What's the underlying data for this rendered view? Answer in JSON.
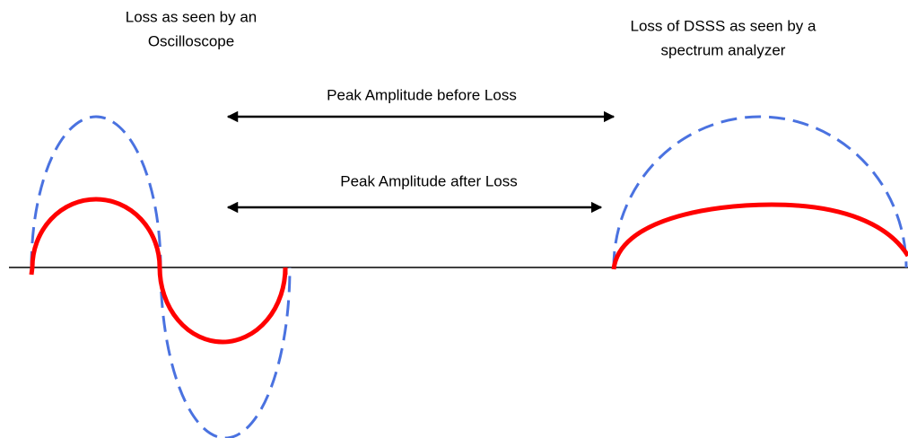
{
  "left_label": [
    "Loss as seen by an",
    "Oscilloscope"
  ],
  "right_label": [
    "Loss of DSSS as seen by a",
    "spectrum analyzer"
  ],
  "arrow_before": "Peak Amplitude before Loss",
  "arrow_after": "Peak Amplitude after Loss"
}
